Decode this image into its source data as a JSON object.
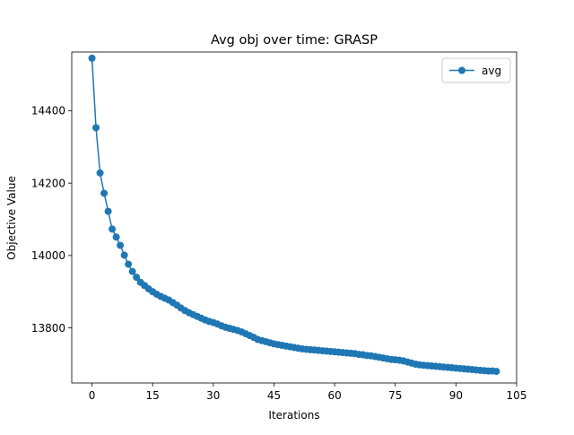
{
  "chart_data": {
    "type": "line",
    "title": "Avg obj over time: GRASP",
    "xlabel": "Iterations",
    "ylabel": "Objective Value",
    "xlim": [
      -5,
      105
    ],
    "ylim": [
      13648,
      14562
    ],
    "xticks": [
      0,
      15,
      30,
      45,
      60,
      75,
      90,
      105
    ],
    "yticks": [
      13800,
      14000,
      14200,
      14400
    ],
    "grid": false,
    "legend": {
      "position": "top-right"
    },
    "series": [
      {
        "name": "avg",
        "color": "#1f77b4",
        "marker": "circle",
        "x": [
          0,
          1,
          2,
          3,
          4,
          5,
          6,
          7,
          8,
          9,
          10,
          11,
          12,
          13,
          14,
          15,
          16,
          17,
          18,
          19,
          20,
          21,
          22,
          23,
          24,
          25,
          26,
          27,
          28,
          29,
          30,
          31,
          32,
          33,
          34,
          35,
          36,
          37,
          38,
          39,
          40,
          41,
          42,
          43,
          44,
          45,
          46,
          47,
          48,
          49,
          50,
          51,
          52,
          53,
          54,
          55,
          56,
          57,
          58,
          59,
          60,
          61,
          62,
          63,
          64,
          65,
          66,
          67,
          68,
          69,
          70,
          71,
          72,
          73,
          74,
          75,
          76,
          77,
          78,
          79,
          80,
          81,
          82,
          83,
          84,
          85,
          86,
          87,
          88,
          89,
          90,
          91,
          92,
          93,
          94,
          95,
          96,
          97,
          98,
          99,
          100
        ],
        "y": [
          14545,
          14353,
          14228,
          14172,
          14122,
          14073,
          14051,
          14028,
          14001,
          13976,
          13956,
          13940,
          13926,
          13917,
          13908,
          13900,
          13893,
          13887,
          13882,
          13877,
          13870,
          13863,
          13855,
          13848,
          13842,
          13837,
          13832,
          13827,
          13822,
          13818,
          13815,
          13811,
          13806,
          13802,
          13799,
          13796,
          13793,
          13789,
          13784,
          13779,
          13774,
          13768,
          13765,
          13762,
          13759,
          13756,
          13754,
          13752,
          13750,
          13748,
          13746,
          13744,
          13742,
          13741,
          13740,
          13739,
          13738,
          13737,
          13736,
          13735,
          13734,
          13733,
          13732,
          13731,
          13730,
          13729,
          13727,
          13726,
          13724,
          13723,
          13721,
          13719,
          13717,
          13715,
          13713,
          13712,
          13711,
          13709,
          13706,
          13703,
          13700,
          13698,
          13697,
          13696,
          13695,
          13694,
          13693,
          13692,
          13691,
          13690,
          13689,
          13688,
          13687,
          13686,
          13685,
          13684,
          13683,
          13682,
          13681,
          13681,
          13680
        ]
      }
    ]
  }
}
